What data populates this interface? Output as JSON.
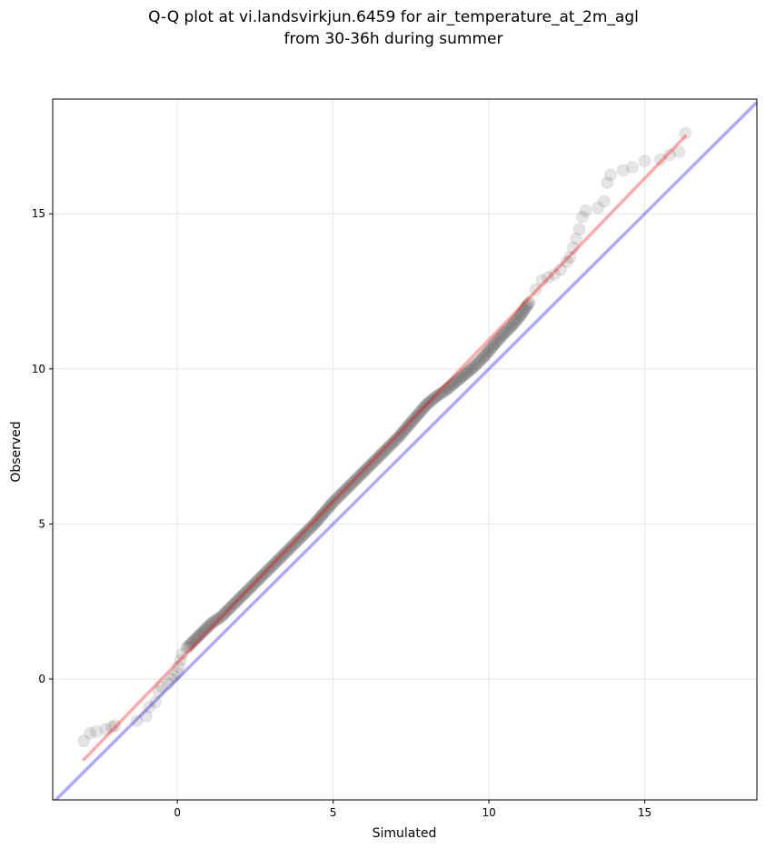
{
  "chart_data": {
    "type": "scatter",
    "title": [
      "Q-Q plot at vi.landsvirkjun.6459 for air_temperature_at_2m_agl",
      "from 30-36h during summer"
    ],
    "xlabel": "Simulated",
    "ylabel": "Observed",
    "xlim": [
      -4.0,
      18.6
    ],
    "ylim": [
      -3.9,
      18.7
    ],
    "xticks": [
      0,
      5,
      10,
      15
    ],
    "yticks": [
      0,
      5,
      10,
      15
    ],
    "grid": true,
    "colors": {
      "points": "#444444",
      "fit_line": "#ff0000",
      "identity_line": "#0000ff",
      "grid": "#e6e6e6"
    },
    "series": [
      {
        "type": "scatter",
        "points": [
          [
            -3.0,
            -2.0
          ],
          [
            -2.8,
            -1.75
          ],
          [
            -2.6,
            -1.7
          ],
          [
            -2.3,
            -1.62
          ],
          [
            -2.1,
            -1.55
          ],
          [
            -2.0,
            -1.5
          ],
          [
            -1.3,
            -1.35
          ],
          [
            -1.0,
            -1.2
          ],
          [
            -0.9,
            -0.9
          ],
          [
            -0.7,
            -0.75
          ],
          [
            -0.6,
            -0.4
          ],
          [
            -0.5,
            -0.25
          ],
          [
            -0.3,
            -0.15
          ],
          [
            -0.2,
            0.0
          ],
          [
            -0.1,
            0.1
          ],
          [
            0.0,
            0.2
          ],
          [
            0.05,
            0.4
          ],
          [
            0.1,
            0.6
          ],
          [
            0.15,
            0.8
          ],
          [
            0.3,
            1.0
          ],
          [
            0.5,
            1.2
          ],
          [
            0.7,
            1.4
          ],
          [
            0.9,
            1.6
          ],
          [
            1.1,
            1.8
          ],
          [
            1.4,
            2.0
          ],
          [
            1.7,
            2.3
          ],
          [
            2.0,
            2.6
          ],
          [
            2.3,
            2.9
          ],
          [
            2.6,
            3.2
          ],
          [
            2.9,
            3.5
          ],
          [
            3.2,
            3.8
          ],
          [
            3.5,
            4.1
          ],
          [
            3.8,
            4.4
          ],
          [
            4.1,
            4.7
          ],
          [
            4.4,
            5.0
          ],
          [
            4.7,
            5.35
          ],
          [
            5.0,
            5.7
          ],
          [
            5.3,
            6.0
          ],
          [
            5.6,
            6.3
          ],
          [
            5.9,
            6.6
          ],
          [
            6.2,
            6.9
          ],
          [
            6.5,
            7.2
          ],
          [
            6.8,
            7.5
          ],
          [
            7.1,
            7.8
          ],
          [
            7.4,
            8.15
          ],
          [
            7.7,
            8.5
          ],
          [
            8.0,
            8.85
          ],
          [
            8.3,
            9.1
          ],
          [
            8.6,
            9.3
          ],
          [
            8.9,
            9.55
          ],
          [
            9.2,
            9.8
          ],
          [
            9.5,
            10.05
          ],
          [
            9.8,
            10.35
          ],
          [
            10.1,
            10.7
          ],
          [
            10.4,
            11.05
          ],
          [
            10.7,
            11.35
          ],
          [
            11.0,
            11.7
          ],
          [
            11.3,
            12.15
          ],
          [
            11.5,
            12.55
          ],
          [
            11.7,
            12.85
          ],
          [
            11.9,
            12.95
          ],
          [
            12.1,
            13.05
          ],
          [
            12.3,
            13.2
          ],
          [
            12.5,
            13.45
          ],
          [
            12.6,
            13.6
          ],
          [
            12.7,
            13.9
          ],
          [
            12.8,
            14.2
          ],
          [
            12.9,
            14.5
          ],
          [
            13.0,
            14.9
          ],
          [
            13.1,
            15.1
          ],
          [
            13.5,
            15.2
          ],
          [
            13.7,
            15.4
          ],
          [
            13.8,
            16.0
          ],
          [
            13.9,
            16.25
          ],
          [
            14.3,
            16.4
          ],
          [
            14.6,
            16.5
          ],
          [
            15.0,
            16.7
          ],
          [
            15.5,
            16.75
          ],
          [
            15.8,
            16.9
          ],
          [
            16.1,
            17.0
          ],
          [
            16.3,
            17.6
          ]
        ]
      },
      {
        "type": "line",
        "name": "",
        "x": [
          -3.0,
          16.3
        ],
        "y": [
          -2.6,
          17.5
        ]
      },
      {
        "type": "line",
        "name": "",
        "x": [
          -4.0,
          18.6
        ],
        "y": [
          -4.0,
          18.6
        ]
      }
    ]
  }
}
